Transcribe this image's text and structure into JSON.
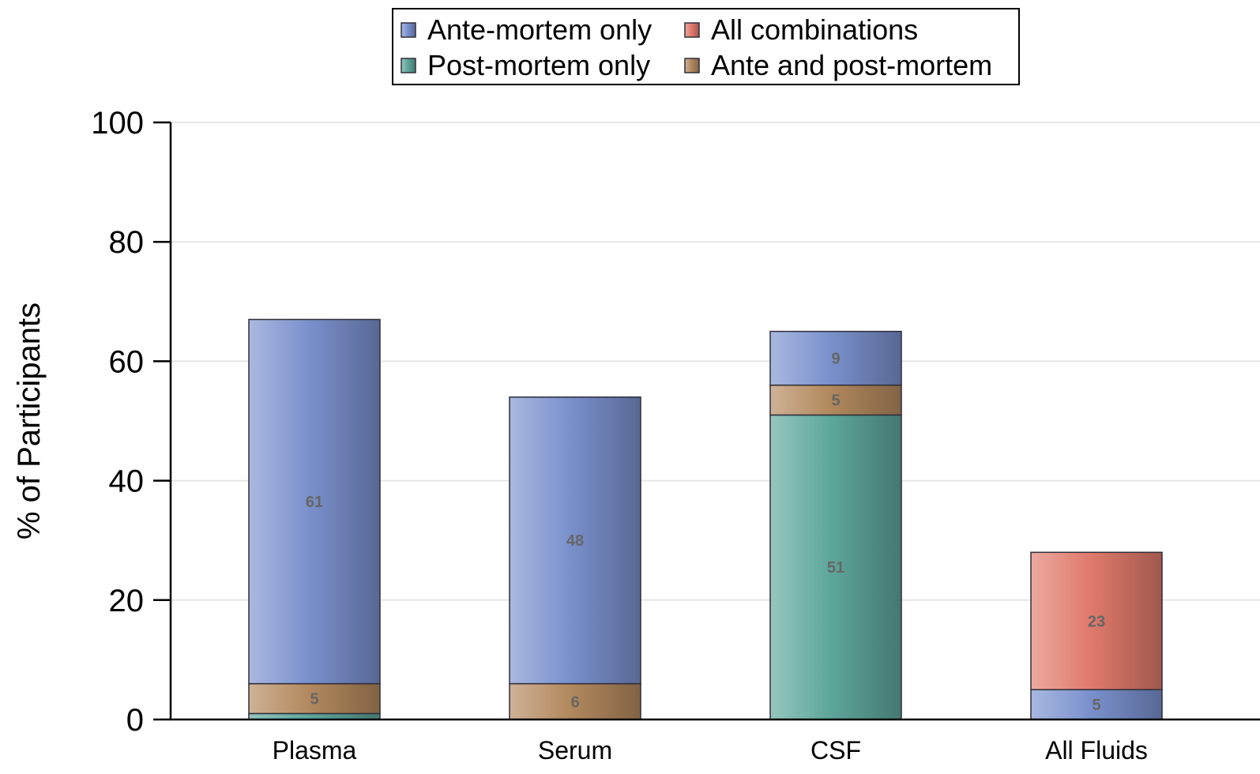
{
  "chart_data": {
    "type": "bar",
    "stacked": true,
    "categories": [
      "Plasma",
      "Serum",
      "CSF",
      "All Fluids"
    ],
    "series": [
      {
        "name": "Post-mortem only",
        "color": "#5ea79b",
        "values": [
          1,
          0,
          51,
          0
        ]
      },
      {
        "name": "Ante and post-mortem",
        "color": "#b3895e",
        "values": [
          5,
          6,
          5,
          0
        ]
      },
      {
        "name": "Ante-mortem only",
        "color": "#7a91cd",
        "values": [
          61,
          48,
          9,
          5
        ]
      },
      {
        "name": "All combinations",
        "color": "#e07a6c",
        "values": [
          0,
          0,
          0,
          23
        ]
      }
    ],
    "data_labels": [
      {
        "category": "Plasma",
        "series": "Ante and post-mortem",
        "text": "5"
      },
      {
        "category": "Plasma",
        "series": "Ante-mortem only",
        "text": "61"
      },
      {
        "category": "Serum",
        "series": "Ante and post-mortem",
        "text": "6"
      },
      {
        "category": "Serum",
        "series": "Ante-mortem only",
        "text": "48"
      },
      {
        "category": "CSF",
        "series": "Post-mortem only",
        "text": "51"
      },
      {
        "category": "CSF",
        "series": "Ante and post-mortem",
        "text": "5"
      },
      {
        "category": "CSF",
        "series": "Ante-mortem only",
        "text": "9"
      },
      {
        "category": "All Fluids",
        "series": "Ante-mortem only",
        "text": "5"
      },
      {
        "category": "All Fluids",
        "series": "All combinations",
        "text": "23"
      }
    ],
    "title": "",
    "xlabel": "",
    "ylabel": "% of Participants",
    "ylim": [
      0,
      100
    ],
    "yticks": [
      0,
      20,
      40,
      60,
      80,
      100
    ],
    "grid": true,
    "legend": {
      "position": "top-center",
      "entries": [
        {
          "label": "Ante-mortem only",
          "series": "Ante-mortem only"
        },
        {
          "label": "All combinations",
          "series": "All combinations"
        },
        {
          "label": "Post-mortem only",
          "series": "Post-mortem only"
        },
        {
          "label": "Ante and post-mortem",
          "series": "Ante and post-mortem"
        }
      ]
    }
  }
}
